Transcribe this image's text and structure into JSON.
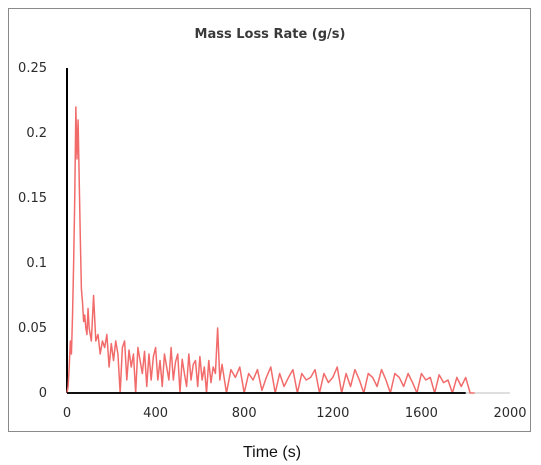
{
  "chart_data": {
    "type": "line",
    "title": "Mass Loss Rate (g/s)",
    "xlabel": "Time (s)",
    "ylabel": "",
    "xlim": [
      0,
      2000
    ],
    "ylim": [
      0,
      0.25
    ],
    "x_ticks": [
      0,
      400,
      800,
      1200,
      1600,
      2000
    ],
    "x_tick_labels": [
      "0",
      "400",
      "800",
      "1200",
      "1600",
      "2000"
    ],
    "y_ticks": [
      0,
      0.05,
      0.1,
      0.15,
      0.2,
      0.25
    ],
    "y_tick_labels": [
      "0",
      "0.05",
      "0.1",
      "0.15",
      "0.2",
      "0.25"
    ],
    "grid": false,
    "legend": "none",
    "series": [
      {
        "color": "#f26b6b",
        "x": [
          0,
          5,
          10,
          15,
          20,
          25,
          30,
          35,
          40,
          45,
          50,
          55,
          60,
          65,
          70,
          75,
          80,
          85,
          90,
          95,
          100,
          110,
          120,
          130,
          140,
          150,
          160,
          170,
          180,
          190,
          200,
          210,
          220,
          230,
          240,
          250,
          260,
          270,
          280,
          290,
          300,
          310,
          320,
          330,
          340,
          350,
          360,
          370,
          380,
          390,
          400,
          410,
          420,
          430,
          440,
          450,
          460,
          470,
          480,
          490,
          500,
          510,
          520,
          530,
          540,
          550,
          560,
          570,
          580,
          590,
          600,
          610,
          620,
          630,
          640,
          650,
          660,
          670,
          680,
          690,
          700,
          720,
          740,
          760,
          780,
          800,
          820,
          840,
          860,
          880,
          900,
          920,
          940,
          960,
          980,
          1000,
          1020,
          1040,
          1060,
          1080,
          1100,
          1120,
          1140,
          1160,
          1180,
          1200,
          1220,
          1240,
          1260,
          1280,
          1300,
          1320,
          1340,
          1360,
          1380,
          1400,
          1420,
          1440,
          1460,
          1480,
          1500,
          1520,
          1540,
          1560,
          1580,
          1600,
          1620,
          1640,
          1660,
          1680,
          1700,
          1720,
          1740,
          1760,
          1780,
          1800,
          1820,
          1840
        ],
        "y": [
          0.0,
          0.005,
          0.02,
          0.04,
          0.03,
          0.06,
          0.1,
          0.15,
          0.22,
          0.18,
          0.21,
          0.165,
          0.12,
          0.08,
          0.07,
          0.055,
          0.06,
          0.05,
          0.045,
          0.065,
          0.05,
          0.04,
          0.075,
          0.04,
          0.045,
          0.03,
          0.04,
          0.035,
          0.045,
          0.02,
          0.038,
          0.025,
          0.04,
          0.03,
          0.0,
          0.035,
          0.04,
          0.01,
          0.033,
          0.02,
          0.03,
          0.0,
          0.035,
          0.025,
          0.015,
          0.032,
          0.005,
          0.03,
          0.01,
          0.028,
          0.035,
          0.01,
          0.025,
          0.005,
          0.03,
          0.02,
          0.01,
          0.035,
          0.01,
          0.024,
          0.03,
          0.0,
          0.026,
          0.015,
          0.005,
          0.03,
          0.01,
          0.022,
          0.025,
          0.005,
          0.028,
          0.01,
          0.02,
          0.0,
          0.025,
          0.008,
          0.02,
          0.015,
          0.05,
          0.01,
          0.022,
          0.0,
          0.018,
          0.012,
          0.02,
          0.0,
          0.015,
          0.01,
          0.018,
          0.002,
          0.012,
          0.02,
          0.0,
          0.015,
          0.005,
          0.012,
          0.018,
          0.0,
          0.015,
          0.01,
          0.012,
          0.018,
          0.0,
          0.015,
          0.008,
          0.012,
          0.02,
          0.0,
          0.015,
          0.005,
          0.018,
          0.01,
          0.0,
          0.015,
          0.012,
          0.005,
          0.018,
          0.01,
          0.0,
          0.015,
          0.012,
          0.005,
          0.015,
          0.008,
          0.0,
          0.015,
          0.01,
          0.012,
          0.0,
          0.014,
          0.008,
          0.01,
          0.0,
          0.012,
          0.005,
          0.012,
          0.0,
          0.0
        ]
      },
      {
        "color": "#111111",
        "x": [
          0,
          1800
        ],
        "y": [
          0,
          0
        ]
      }
    ]
  }
}
